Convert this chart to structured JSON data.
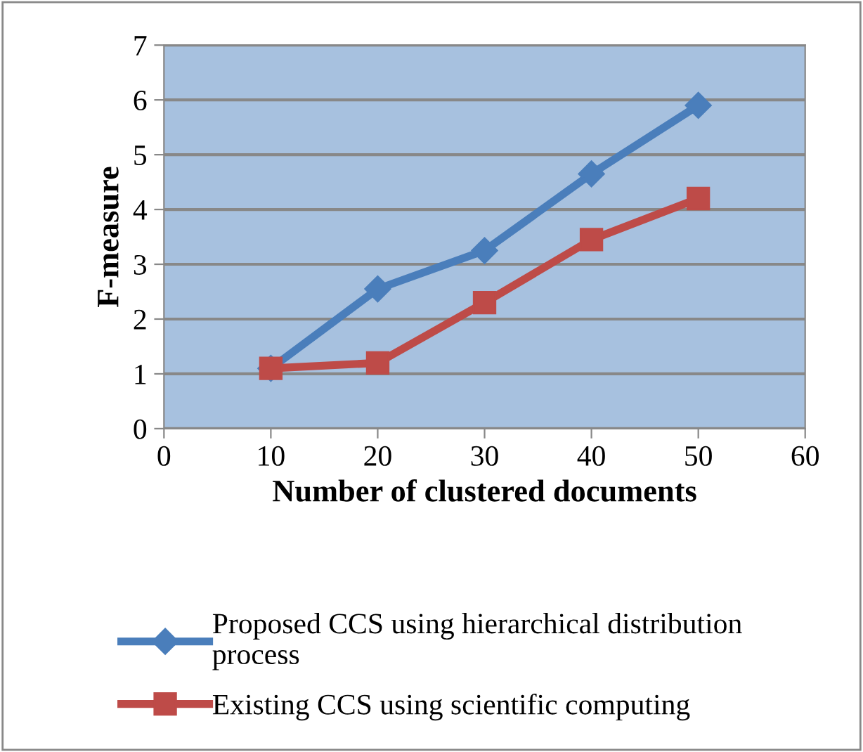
{
  "chart_data": {
    "type": "line",
    "xlabel": "Number of clustered documents",
    "ylabel": "F-measure",
    "x": [
      10,
      20,
      30,
      40,
      50
    ],
    "series": [
      {
        "name": "Proposed CCS using hierarchical distribution process",
        "color": "#4a7ebb",
        "marker": "diamond",
        "values": [
          1.1,
          2.55,
          3.25,
          4.65,
          5.9
        ]
      },
      {
        "name": "Existing CCS using scientific computing",
        "color": "#be4b48",
        "marker": "square",
        "values": [
          1.1,
          1.2,
          2.3,
          3.45,
          4.2
        ]
      }
    ],
    "xlim": [
      0,
      60
    ],
    "xticks": [
      0,
      10,
      20,
      30,
      40,
      50,
      60
    ],
    "ylim": [
      0,
      7
    ],
    "yticks": [
      0,
      1,
      2,
      3,
      4,
      5,
      6,
      7
    ],
    "grid": "y",
    "legend": "bottom",
    "line_style": "solid"
  }
}
